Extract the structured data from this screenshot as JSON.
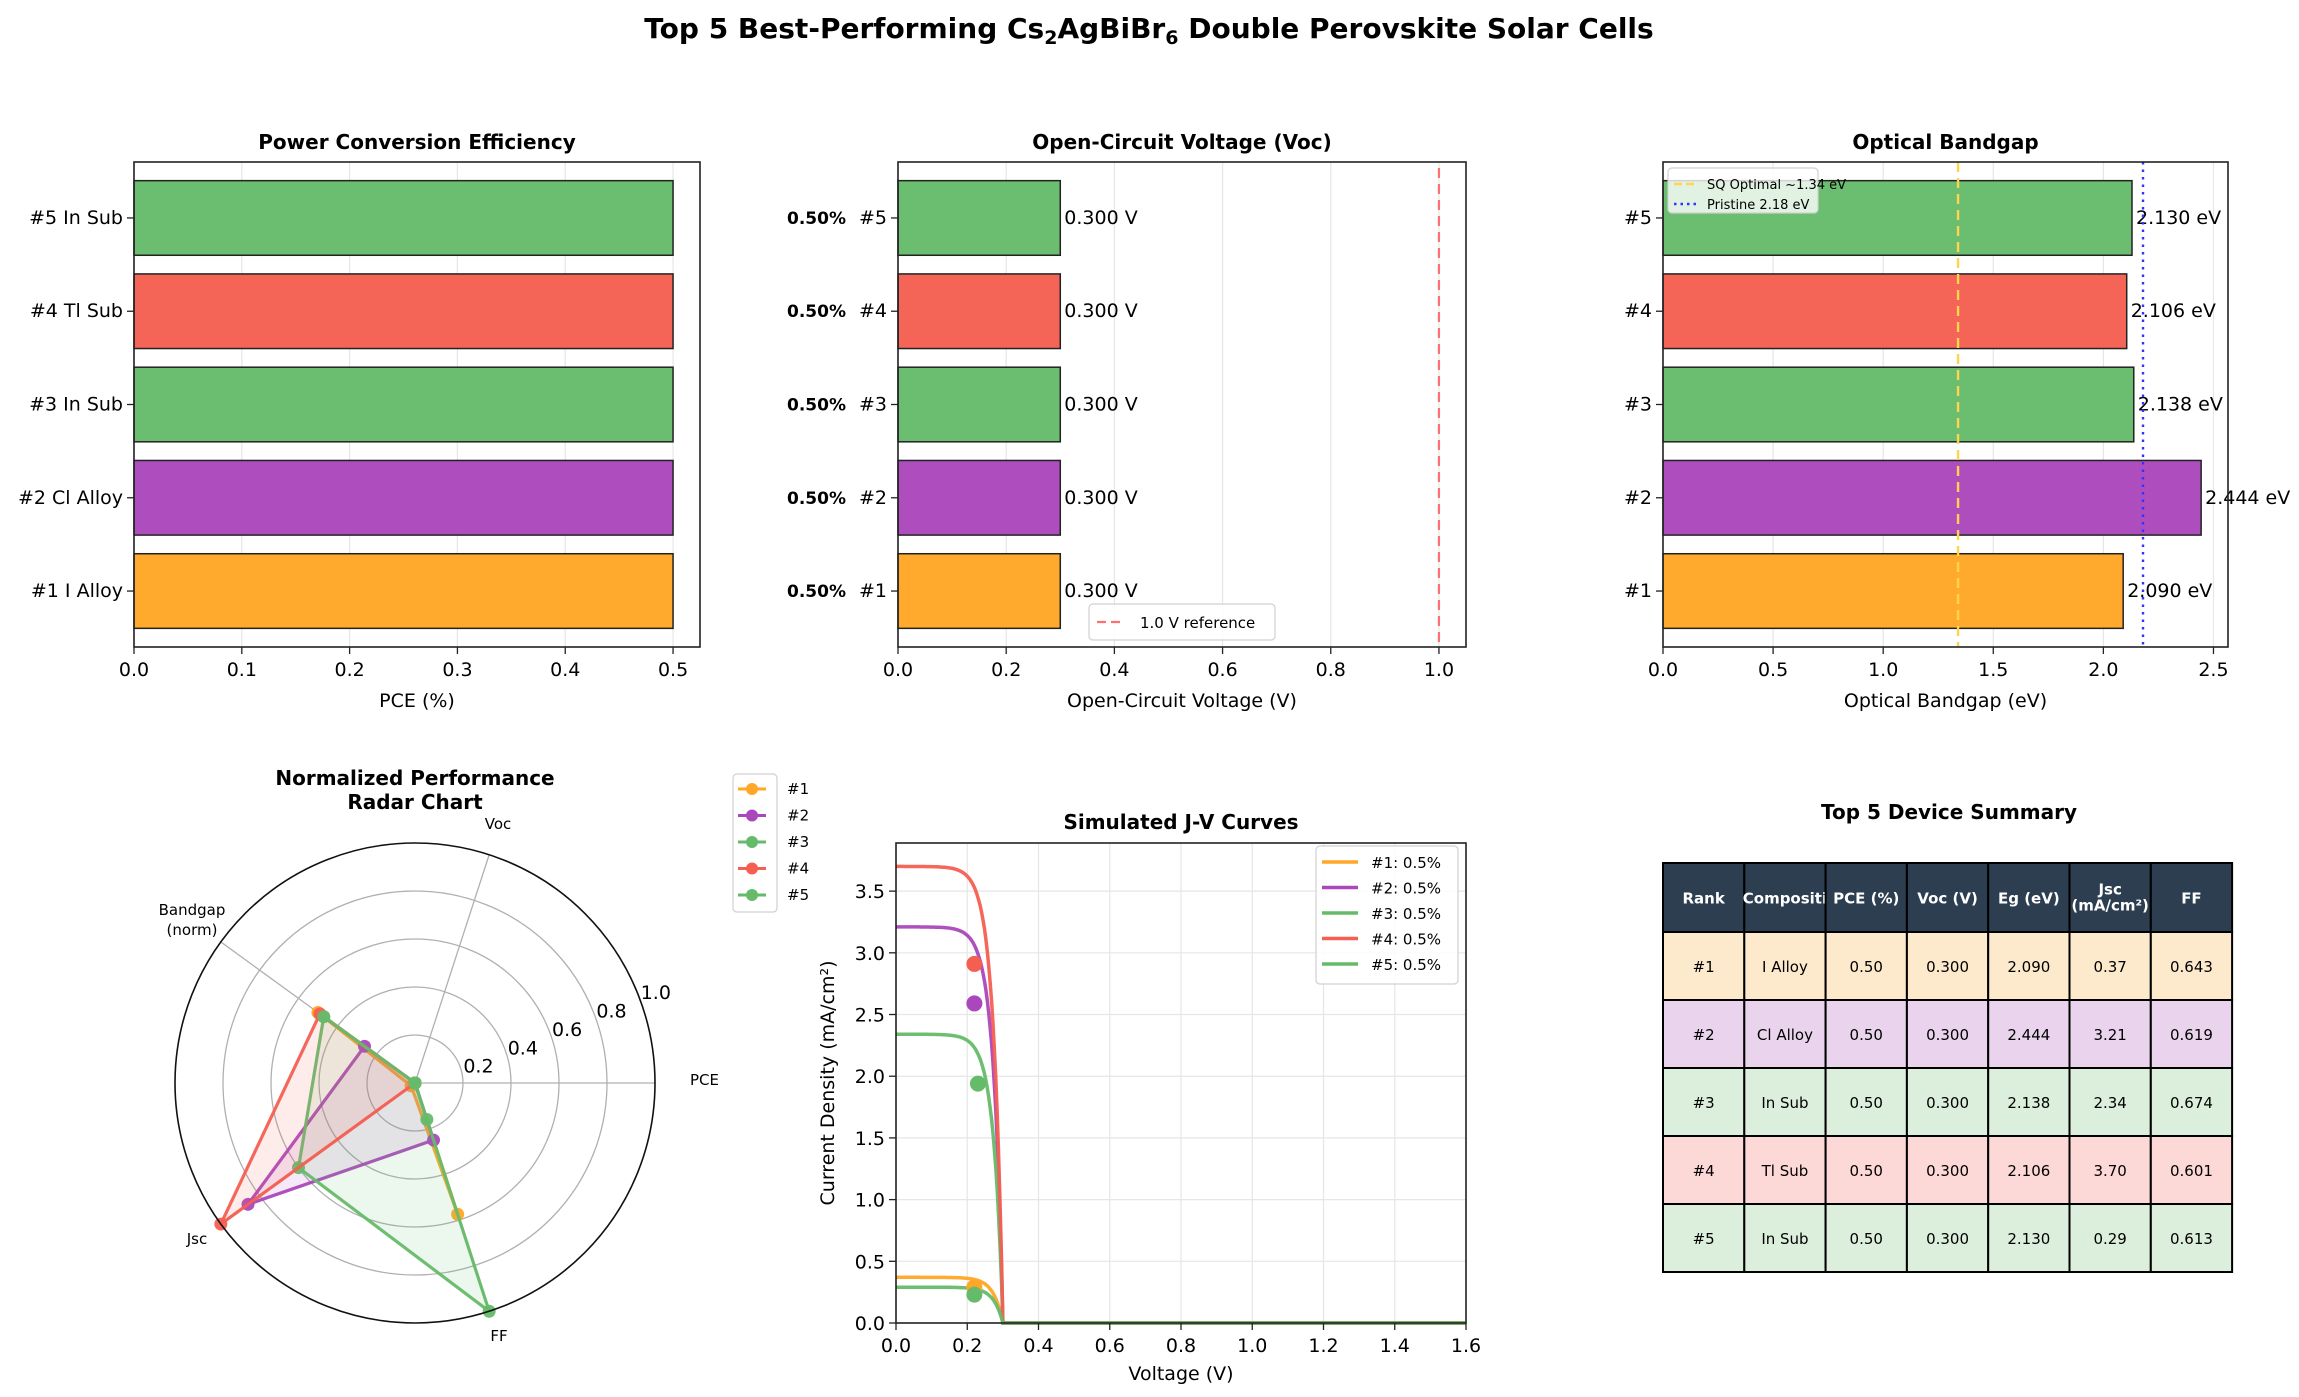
{
  "figure": {
    "title_prefix": "Top 5 Best-Performing Cs",
    "title_sub1": "2",
    "title_mid": "AgBiBr",
    "title_sub2": "6",
    "title_suffix": " Double Perovskite Solar Cells"
  },
  "colors": {
    "rank1": "#ffa726",
    "rank2": "#ab47bc",
    "rank3": "#66bb6a",
    "rank4": "#f45f52",
    "rank5": "#66bb6a",
    "table_header": "#2c3e50",
    "sq_line": "#ffd54f",
    "pristine_line": "#3333ff",
    "reference_line": "#ff7070"
  },
  "chart_data": [
    {
      "id": "pce",
      "type": "bar",
      "orientation": "horizontal",
      "title": "Power Conversion Efficiency",
      "xlabel": "PCE (%)",
      "ylabel": "",
      "categories": [
        "#1 I Alloy",
        "#2 Cl Alloy",
        "#3 In Sub",
        "#4 Tl Sub",
        "#5 In Sub"
      ],
      "values": [
        0.5,
        0.5,
        0.5,
        0.5,
        0.5
      ],
      "xlim": [
        0,
        0.525
      ],
      "xticks": [
        0.0,
        0.1,
        0.2,
        0.3,
        0.4,
        0.5
      ],
      "grid": "x"
    },
    {
      "id": "voc",
      "type": "bar",
      "orientation": "horizontal",
      "title": "Open-Circuit Voltage (Voc)",
      "xlabel": "Open-Circuit Voltage (V)",
      "categories": [
        "#1",
        "#2",
        "#3",
        "#4",
        "#5"
      ],
      "values": [
        0.3,
        0.3,
        0.3,
        0.3,
        0.3
      ],
      "value_labels": [
        "0.300 V",
        "0.300 V",
        "0.300 V",
        "0.300 V",
        "0.300 V"
      ],
      "side_labels": [
        "0.50%",
        "0.50%",
        "0.50%",
        "0.50%",
        "0.50%"
      ],
      "xlim": [
        0,
        1.05
      ],
      "xticks": [
        0.0,
        0.2,
        0.4,
        0.6,
        0.8,
        1.0
      ],
      "reference_line": {
        "x": 1.0,
        "label": "1.0 V reference"
      },
      "legend": "bottom-center",
      "grid": "x"
    },
    {
      "id": "bandgap",
      "type": "bar",
      "orientation": "horizontal",
      "title": "Optical Bandgap",
      "xlabel": "Optical Bandgap (eV)",
      "categories": [
        "#1",
        "#2",
        "#3",
        "#4",
        "#5"
      ],
      "values": [
        2.09,
        2.444,
        2.138,
        2.106,
        2.13
      ],
      "value_labels": [
        "2.090 eV",
        "2.444 eV",
        "2.138 eV",
        "2.106 eV",
        "2.130 eV"
      ],
      "xlim": [
        0,
        2.566
      ],
      "xticks": [
        0.0,
        0.5,
        1.0,
        1.5,
        2.0,
        2.5
      ],
      "lines": [
        {
          "x": 1.34,
          "label": "SQ Optimal ~1.34 eV",
          "style": "dashed"
        },
        {
          "x": 2.18,
          "label": "Pristine 2.18 eV",
          "style": "dotted"
        }
      ],
      "legend": "top-left",
      "grid": "x"
    },
    {
      "id": "radar",
      "type": "radar",
      "title_line1": "Normalized Performance",
      "title_line2": "Radar Chart",
      "axes": [
        "PCE",
        "Voc",
        "Bandgap (norm)",
        "Jsc",
        "FF"
      ],
      "axis_label_lines": [
        [
          "PCE"
        ],
        [
          "Voc"
        ],
        [
          "Bandgap",
          "(norm)"
        ],
        [
          "Jsc"
        ],
        [
          "FF"
        ]
      ],
      "rlim": [
        0,
        1
      ],
      "rticks": [
        0.2,
        0.4,
        0.6,
        0.8,
        1.0
      ],
      "rtick_labels": [
        "0.2",
        "0.4",
        "0.6",
        "0.8",
        "1.0"
      ],
      "series": [
        {
          "name": "#1",
          "values": [
            0,
            0,
            0.5,
            0.02,
            0.575
          ]
        },
        {
          "name": "#2",
          "values": [
            0,
            0,
            0.26,
            0.86,
            0.25
          ]
        },
        {
          "name": "#3",
          "values": [
            0,
            0,
            0.47,
            0.6,
            1.0
          ]
        },
        {
          "name": "#4",
          "values": [
            0,
            0,
            0.49,
            1.0,
            0.0
          ]
        },
        {
          "name": "#5",
          "values": [
            0,
            0,
            0.47,
            0.0,
            0.16
          ]
        }
      ],
      "legend": "outside-top-right"
    },
    {
      "id": "jv",
      "type": "line",
      "title": "Simulated J-V Curves",
      "xlabel": "Voltage (V)",
      "ylabel": "Current Density (mA/cm²)",
      "xlim": [
        0,
        1.6
      ],
      "ylim": [
        0,
        3.89
      ],
      "xticks": [
        0.0,
        0.2,
        0.4,
        0.6,
        0.8,
        1.0,
        1.2,
        1.4,
        1.6
      ],
      "yticks": [
        0.0,
        0.5,
        1.0,
        1.5,
        2.0,
        2.5,
        3.0,
        3.5
      ],
      "voc": 0.3,
      "series": [
        {
          "name": "#1: 0.5%",
          "jsc": 0.37,
          "mpp": [
            0.22,
            0.29
          ]
        },
        {
          "name": "#2: 0.5%",
          "jsc": 3.21,
          "mpp": [
            0.22,
            2.59
          ]
        },
        {
          "name": "#3: 0.5%",
          "jsc": 2.34,
          "mpp": [
            0.23,
            1.94
          ]
        },
        {
          "name": "#4: 0.5%",
          "jsc": 3.7,
          "mpp": [
            0.22,
            2.91
          ]
        },
        {
          "name": "#5: 0.5%",
          "jsc": 0.29,
          "mpp": [
            0.22,
            0.23
          ]
        }
      ],
      "legend": "top-right",
      "grid": true
    },
    {
      "id": "summary",
      "type": "table",
      "title": "Top 5 Device Summary",
      "columns": [
        "Rank",
        "Compositi",
        "PCE (%)",
        "Voc (V)",
        "Eg (eV)",
        "Jsc\n(mA/cm²)",
        "FF"
      ],
      "column_lines": [
        [
          "Rank"
        ],
        [
          "Compositi"
        ],
        [
          "PCE (%)"
        ],
        [
          "Voc (V)"
        ],
        [
          "Eg (eV)"
        ],
        [
          "Jsc",
          "(mA/cm²)"
        ],
        [
          "FF"
        ]
      ],
      "rows": [
        [
          "#1",
          "I Alloy",
          "0.50",
          "0.300",
          "2.090",
          "0.37",
          "0.643"
        ],
        [
          "#2",
          "Cl Alloy",
          "0.50",
          "0.300",
          "2.444",
          "3.21",
          "0.619"
        ],
        [
          "#3",
          "In Sub",
          "0.50",
          "0.300",
          "2.138",
          "2.34",
          "0.674"
        ],
        [
          "#4",
          "Tl Sub",
          "0.50",
          "0.300",
          "2.106",
          "3.70",
          "0.601"
        ],
        [
          "#5",
          "In Sub",
          "0.50",
          "0.300",
          "2.130",
          "0.29",
          "0.613"
        ]
      ],
      "row_colors": [
        "#fde9cc",
        "#ead4ed",
        "#dcefdc",
        "#fcd8d6",
        "#dcefdc"
      ]
    }
  ]
}
